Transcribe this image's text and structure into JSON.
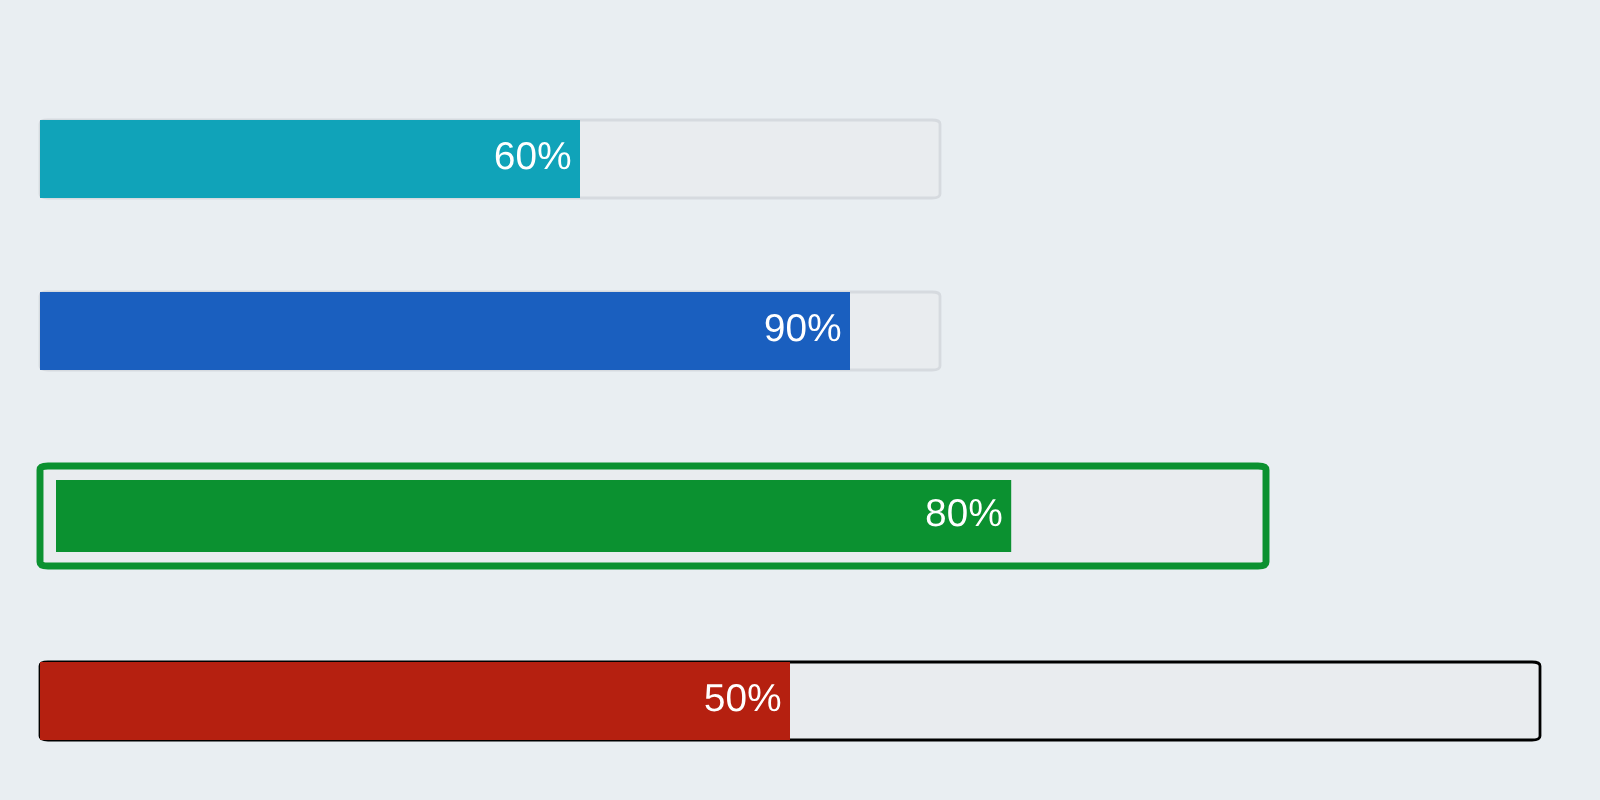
{
  "chart_data": {
    "type": "other",
    "categories": [
      null,
      null,
      null,
      null
    ],
    "values": [
      60,
      90,
      80,
      50
    ],
    "colors": [
      "#10a3b9",
      "#1a5fbf",
      "#0b9130",
      "#b52010"
    ],
    "value_labels": [
      "60%",
      "90%",
      "80%",
      "50%"
    ]
  }
}
